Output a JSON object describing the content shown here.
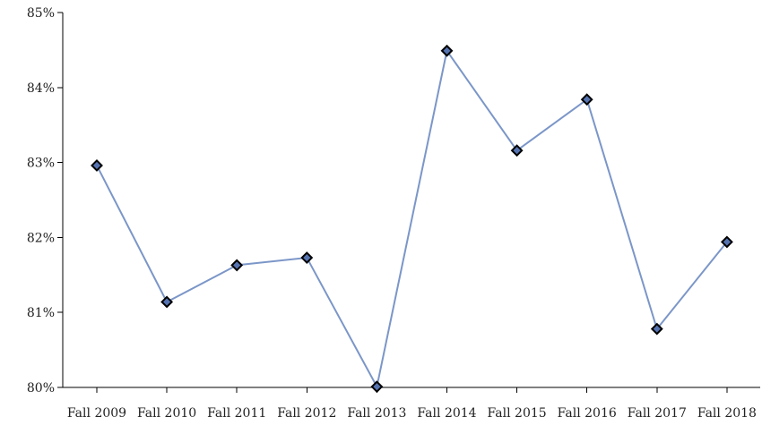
{
  "chart_data": {
    "type": "line",
    "title": "",
    "xlabel": "",
    "ylabel": "",
    "categories": [
      "Fall 2009",
      "Fall 2010",
      "Fall 2011",
      "Fall 2012",
      "Fall 2013",
      "Fall 2014",
      "Fall 2015",
      "Fall 2016",
      "Fall 2017",
      "Fall 2018"
    ],
    "series": [
      {
        "values": [
          82.96,
          81.14,
          81.63,
          81.73,
          80.01,
          84.49,
          83.16,
          83.84,
          80.78,
          81.94
        ],
        "line_color": "#7b96c8",
        "marker": "diamond",
        "marker_fill": "#5573b0",
        "marker_edge": "#000000"
      }
    ],
    "ylim": [
      80,
      85
    ],
    "y_ticks": [
      80,
      81,
      82,
      83,
      84,
      85
    ],
    "y_tick_labels": [
      "80%",
      "81%",
      "82%",
      "83%",
      "84%",
      "85%"
    ],
    "grid": false,
    "legend": "none"
  }
}
